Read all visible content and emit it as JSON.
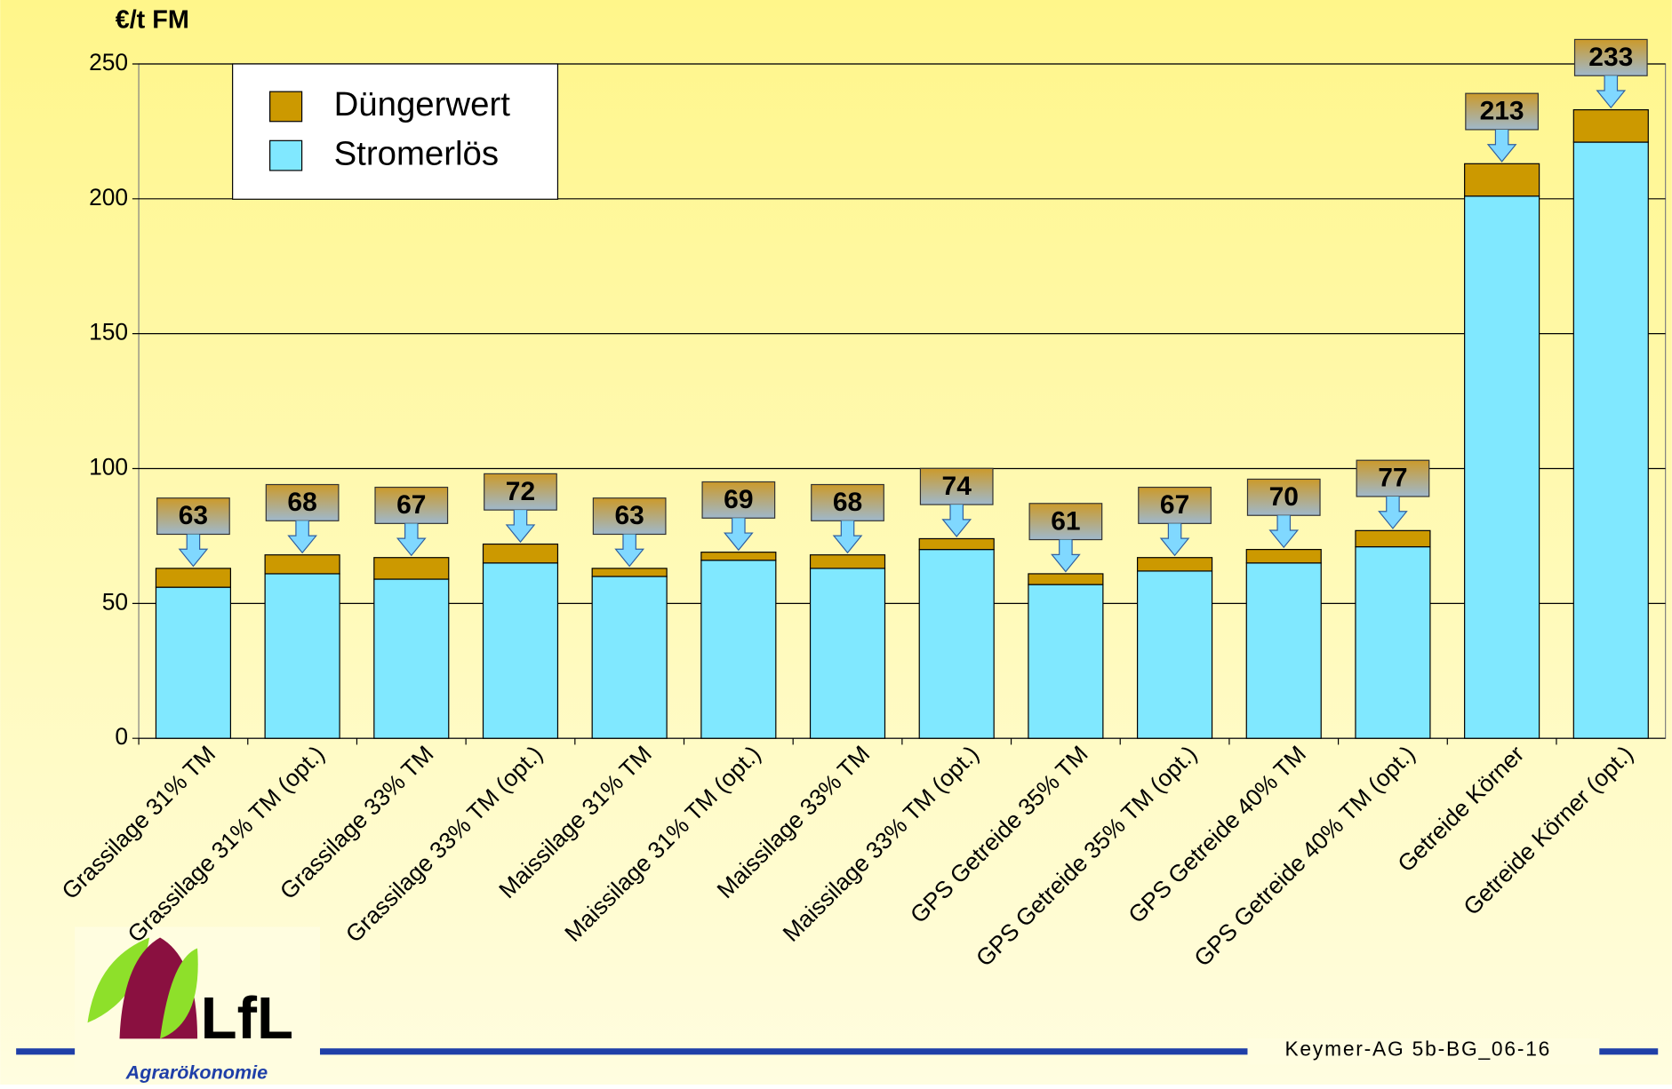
{
  "chart_data": {
    "type": "stacked_bar",
    "y_label": "€/t FM",
    "categories": [
      "Grassilage 31% TM",
      "Grassilage 31% TM (opt.)",
      "Grassilage 33% TM",
      "Grassilage 33% TM (opt.)",
      "Maissilage 31% TM",
      "Maissilage 31% TM (opt.)",
      "Maissilage 33% TM",
      "Maissilage 33% TM (opt.)",
      "GPS Getreide 35% TM",
      "GPS Getreide 35% TM (opt.)",
      "GPS Getreide 40% TM",
      "GPS Getreide 40% TM (opt.)",
      "Getreide Körner",
      "Getreide Körner (opt.)"
    ],
    "series": [
      {
        "name": "Stromerlös",
        "color": "#80e8ff",
        "values": [
          56,
          61,
          59,
          65,
          60,
          66,
          63,
          70,
          57,
          62,
          65,
          71,
          201,
          221
        ]
      },
      {
        "name": "Düngerwert",
        "color": "#cc9900",
        "values": [
          7,
          7,
          8,
          7,
          3,
          3,
          5,
          4,
          4,
          5,
          5,
          6,
          12,
          12
        ]
      }
    ],
    "total_labels": [
      63,
      68,
      67,
      72,
      63,
      69,
      68,
      74,
      61,
      67,
      70,
      77,
      213,
      233
    ],
    "ylim": [
      0,
      250
    ],
    "yticks": [
      0,
      50,
      100,
      150,
      200,
      250
    ],
    "grid": true
  },
  "footer": {
    "logo": "LfL",
    "unit": "Agrarökonomie",
    "ref": "Keymer-AG 5b-BG_06-16"
  }
}
